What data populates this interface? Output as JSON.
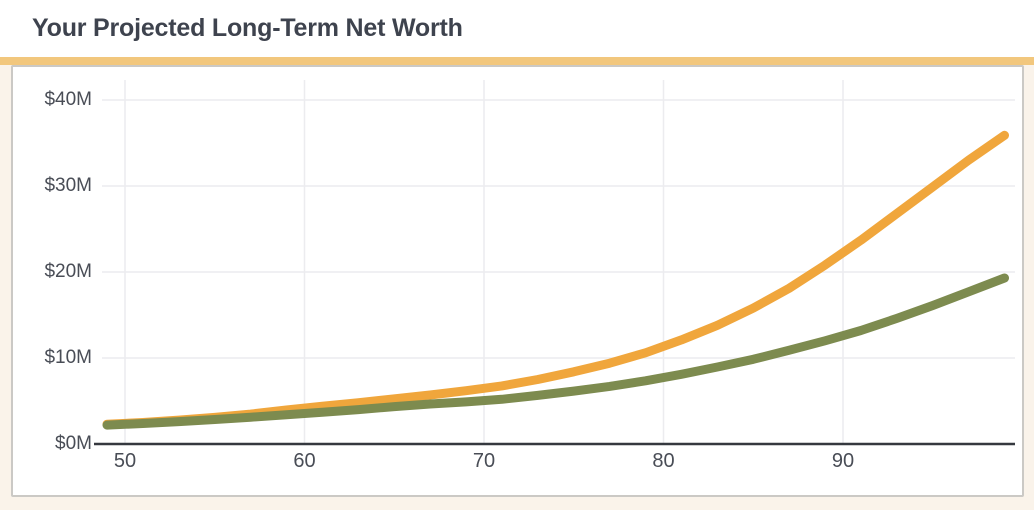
{
  "header": {
    "title": "Your Projected Long-Term Net Worth"
  },
  "colors": {
    "accent_bar": "#F2C77D",
    "upper_line": "#F0A63C",
    "lower_line": "#7D8B4F",
    "title_text": "#3E434E",
    "axis_text": "#494D56",
    "axis_line": "#35383F",
    "gridline": "#ECECEF",
    "page_background": "#FAF3EA",
    "panel_background": "#FFFFFF",
    "panel_border": "#CBC9C5"
  },
  "chart_data": {
    "type": "line",
    "title": "Your Projected Long-Term Net Worth",
    "xlabel": "",
    "ylabel": "",
    "units": "millions of dollars",
    "grid": true,
    "legend": "none",
    "xlim": [
      49,
      99.5
    ],
    "ylim": [
      0,
      42
    ],
    "x_ticks": [
      50,
      60,
      70,
      80,
      90
    ],
    "y_tick_labels": [
      "$40M",
      "$30M",
      "$20M",
      "$10M",
      "$0M"
    ],
    "y_tick_values": [
      40,
      30,
      20,
      10,
      0
    ],
    "x": [
      49,
      51,
      53,
      55,
      57,
      59,
      61,
      63,
      65,
      67,
      69,
      71,
      73,
      75,
      77,
      79,
      81,
      83,
      85,
      87,
      89,
      91,
      93,
      95,
      97,
      99
    ],
    "series": [
      {
        "name": "orange-line",
        "color": "#F0A63C",
        "values": [
          2.3,
          2.5,
          2.78,
          3.1,
          3.48,
          3.95,
          4.4,
          4.8,
          5.25,
          5.7,
          6.2,
          6.75,
          7.5,
          8.4,
          9.4,
          10.6,
          12.1,
          13.8,
          15.8,
          18.1,
          20.8,
          23.7,
          26.8,
          29.9,
          33.0,
          35.9
        ]
      },
      {
        "name": "green-line",
        "color": "#7D8B4F",
        "values": [
          2.2,
          2.38,
          2.6,
          2.85,
          3.12,
          3.4,
          3.7,
          4.0,
          4.35,
          4.65,
          4.9,
          5.2,
          5.65,
          6.15,
          6.7,
          7.35,
          8.1,
          8.95,
          9.85,
          10.9,
          12.0,
          13.2,
          14.6,
          16.1,
          17.7,
          19.3
        ]
      }
    ]
  }
}
